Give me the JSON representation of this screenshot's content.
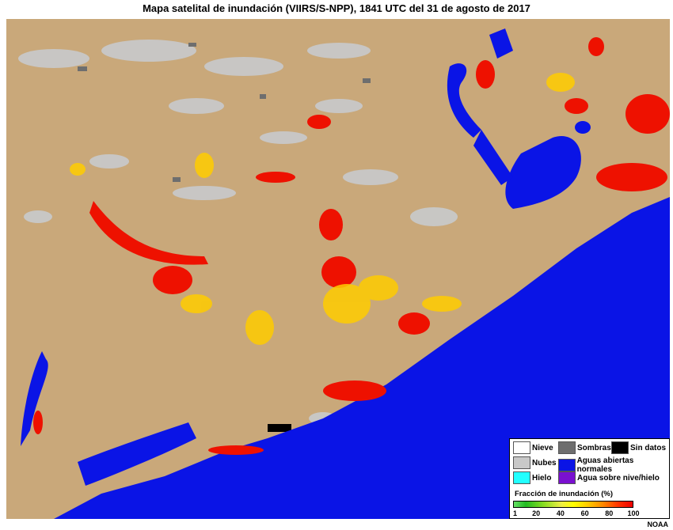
{
  "title": "Mapa satelital de inundación (VIIRS/S-NPP), 1841 UTC del 31 de agosto de 2017",
  "legend": {
    "items": [
      {
        "label": "Nieve",
        "color": "#ffffff"
      },
      {
        "label": "Sombras",
        "color": "#6e6e6e"
      },
      {
        "label": "Sin datos",
        "color": "#000000"
      },
      {
        "label": "Nubes",
        "color": "#c8c8c8"
      },
      {
        "label": "Aguas abiertas normales",
        "color": "#0a14e6"
      },
      {
        "label": "Hielo",
        "color": "#22ffff"
      },
      {
        "label": "Agua sobre nive/hielo",
        "color": "#7a10d0"
      }
    ],
    "colorbar": {
      "title": "Fracción de inundación (%)",
      "ticks": [
        1,
        20,
        40,
        60,
        80,
        100
      ]
    }
  },
  "credit": "NOAA"
}
